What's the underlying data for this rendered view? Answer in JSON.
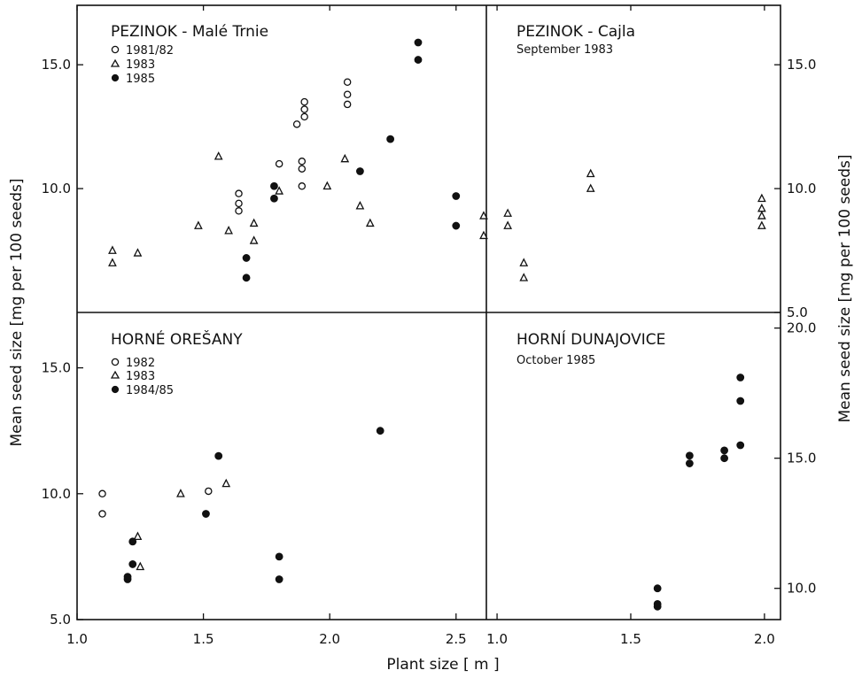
{
  "axes": {
    "xlabel": "Plant size  [ m ]",
    "ylabel_left": "Mean seed size  [mg per 100 seeds]",
    "ylabel_right": "Mean seed size  [mg per 100 seeds]",
    "left_x_ticks": [
      "1.0",
      "1.5",
      "2.0",
      "2.5"
    ],
    "right_x_ticks": [
      "1.0",
      "1.5",
      "2.0"
    ],
    "top_y_ticks": [
      "5.0",
      "10.0",
      "15.0"
    ],
    "bottom_left_y_ticks": [
      "5.0",
      "10.0",
      "15.0"
    ],
    "bottom_right_y_ticks": [
      "10.0",
      "15.0",
      "20.0"
    ]
  },
  "chart_data": [
    {
      "type": "scatter",
      "title": "PEZINOK - Malé Trnie",
      "subtitle": "",
      "xlim": [
        1.0,
        2.62
      ],
      "ylim": [
        5.0,
        17.4
      ],
      "series": [
        {
          "name": "1981/82",
          "marker": "circle-open",
          "points": [
            [
              1.64,
              9.1
            ],
            [
              1.64,
              9.4
            ],
            [
              1.64,
              9.8
            ],
            [
              1.8,
              11.0
            ],
            [
              1.87,
              12.6
            ],
            [
              1.89,
              10.1
            ],
            [
              1.89,
              10.8
            ],
            [
              1.89,
              11.1
            ],
            [
              1.9,
              12.9
            ],
            [
              1.9,
              13.2
            ],
            [
              1.9,
              13.5
            ],
            [
              2.07,
              13.4
            ],
            [
              2.07,
              13.8
            ],
            [
              2.07,
              14.3
            ]
          ]
        },
        {
          "name": "1983",
          "marker": "triangle-open",
          "points": [
            [
              1.14,
              7.0
            ],
            [
              1.14,
              7.5
            ],
            [
              1.24,
              7.4
            ],
            [
              1.48,
              8.5
            ],
            [
              1.56,
              11.3
            ],
            [
              1.6,
              8.3
            ],
            [
              1.7,
              7.9
            ],
            [
              1.7,
              8.6
            ],
            [
              1.8,
              9.9
            ],
            [
              1.99,
              10.1
            ],
            [
              2.06,
              11.2
            ],
            [
              2.12,
              9.3
            ],
            [
              2.16,
              8.6
            ]
          ]
        },
        {
          "name": "1985",
          "marker": "circle-filled",
          "points": [
            [
              1.67,
              6.4
            ],
            [
              1.67,
              7.2
            ],
            [
              1.78,
              9.6
            ],
            [
              1.78,
              10.1
            ],
            [
              2.12,
              10.7
            ],
            [
              2.24,
              12.0
            ],
            [
              2.35,
              15.2
            ],
            [
              2.35,
              15.9
            ],
            [
              2.5,
              8.5
            ],
            [
              2.5,
              9.7
            ]
          ]
        }
      ]
    },
    {
      "type": "scatter",
      "title": "PEZINOK - Cajla",
      "subtitle": "September 1983",
      "xlim": [
        0.96,
        2.06
      ],
      "ylim": [
        5.0,
        17.4
      ],
      "series": [
        {
          "name": "",
          "marker": "triangle-open",
          "points": [
            [
              0.95,
              8.1
            ],
            [
              0.95,
              8.9
            ],
            [
              1.04,
              8.5
            ],
            [
              1.04,
              9.0
            ],
            [
              1.1,
              6.4
            ],
            [
              1.1,
              7.0
            ],
            [
              1.35,
              10.0
            ],
            [
              1.35,
              10.6
            ],
            [
              1.99,
              8.5
            ],
            [
              1.99,
              8.9
            ],
            [
              1.99,
              9.2
            ],
            [
              1.99,
              9.6
            ]
          ]
        }
      ]
    },
    {
      "type": "scatter",
      "title": "HORNÉ OREŠANY",
      "subtitle": "",
      "xlim": [
        1.0,
        2.62
      ],
      "ylim": [
        5.0,
        17.2
      ],
      "series": [
        {
          "name": "1982",
          "marker": "circle-open",
          "points": [
            [
              1.1,
              9.2
            ],
            [
              1.1,
              10.0
            ],
            [
              1.52,
              10.1
            ]
          ]
        },
        {
          "name": "1983",
          "marker": "triangle-open",
          "points": [
            [
              1.24,
              8.3
            ],
            [
              1.25,
              7.1
            ],
            [
              1.41,
              10.0
            ],
            [
              1.59,
              10.4
            ]
          ]
        },
        {
          "name": "1984/85",
          "marker": "circle-filled",
          "points": [
            [
              1.2,
              6.6
            ],
            [
              1.2,
              6.7
            ],
            [
              1.22,
              7.2
            ],
            [
              1.22,
              8.1
            ],
            [
              1.51,
              9.2
            ],
            [
              1.56,
              11.5
            ],
            [
              1.8,
              6.6
            ],
            [
              1.8,
              7.5
            ],
            [
              2.2,
              12.5
            ]
          ]
        }
      ]
    },
    {
      "type": "scatter",
      "title": "HORNÍ DUNAJOVICE",
      "subtitle": "October 1985",
      "xlim": [
        0.96,
        2.06
      ],
      "ylim": [
        8.8,
        20.6
      ],
      "series": [
        {
          "name": "",
          "marker": "circle-filled",
          "points": [
            [
              1.6,
              9.3
            ],
            [
              1.6,
              9.4
            ],
            [
              1.6,
              10.0
            ],
            [
              1.72,
              14.8
            ],
            [
              1.72,
              15.1
            ],
            [
              1.85,
              15.0
            ],
            [
              1.85,
              15.3
            ],
            [
              1.91,
              15.5
            ],
            [
              1.91,
              17.2
            ],
            [
              1.91,
              18.1
            ]
          ]
        }
      ]
    }
  ]
}
